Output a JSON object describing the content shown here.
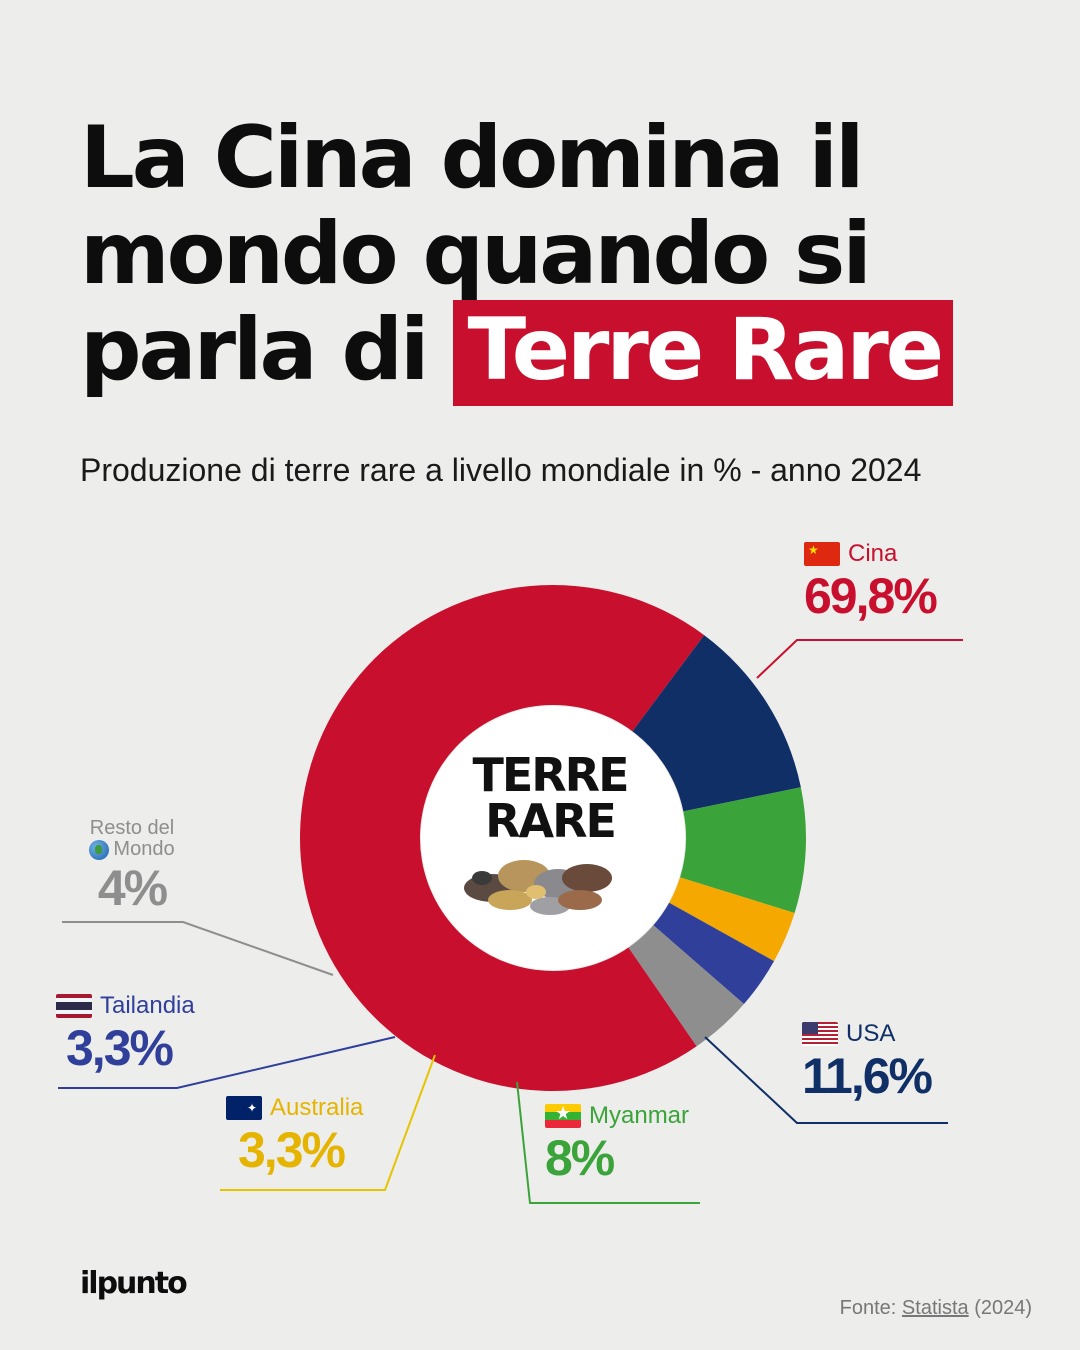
{
  "header": {
    "title_line1": "La Cina domina il",
    "title_line2": "mondo quando si",
    "title_line3_prefix": "parla di",
    "title_highlight": "Terre Rare",
    "subtitle": "Produzione di terre rare a livello mondiale in % - anno 2024"
  },
  "center": {
    "line1": "TERRE",
    "line2": "RARE"
  },
  "labels": {
    "cina": {
      "name": "Cina",
      "value": "69,8%"
    },
    "usa": {
      "name": "USA",
      "value": "11,6%"
    },
    "myanmar": {
      "name": "Myanmar",
      "value": "8%"
    },
    "australia": {
      "name": "Australia",
      "value": "3,3%"
    },
    "tailandia": {
      "name": "Tailandia",
      "value": "3,3%"
    },
    "resto": {
      "name_line1": "Resto del",
      "name_line2": "Mondo",
      "value": "4%"
    }
  },
  "footer": {
    "logo": "ilpunto",
    "source_prefix": "Fonte:",
    "source_link": "Statista",
    "source_suffix": "(2024)"
  },
  "chart_data": {
    "type": "pie",
    "donut": true,
    "categories": [
      "Cina",
      "USA",
      "Myanmar",
      "Australia",
      "Tailandia",
      "Resto del Mondo"
    ],
    "values": [
      69.8,
      11.6,
      8,
      3.3,
      3.3,
      4
    ],
    "colors": [
      "#c8102e",
      "#0f2f66",
      "#3aa33a",
      "#f4a800",
      "#2f3f9a",
      "#8e8e8e"
    ],
    "unit": "%"
  }
}
